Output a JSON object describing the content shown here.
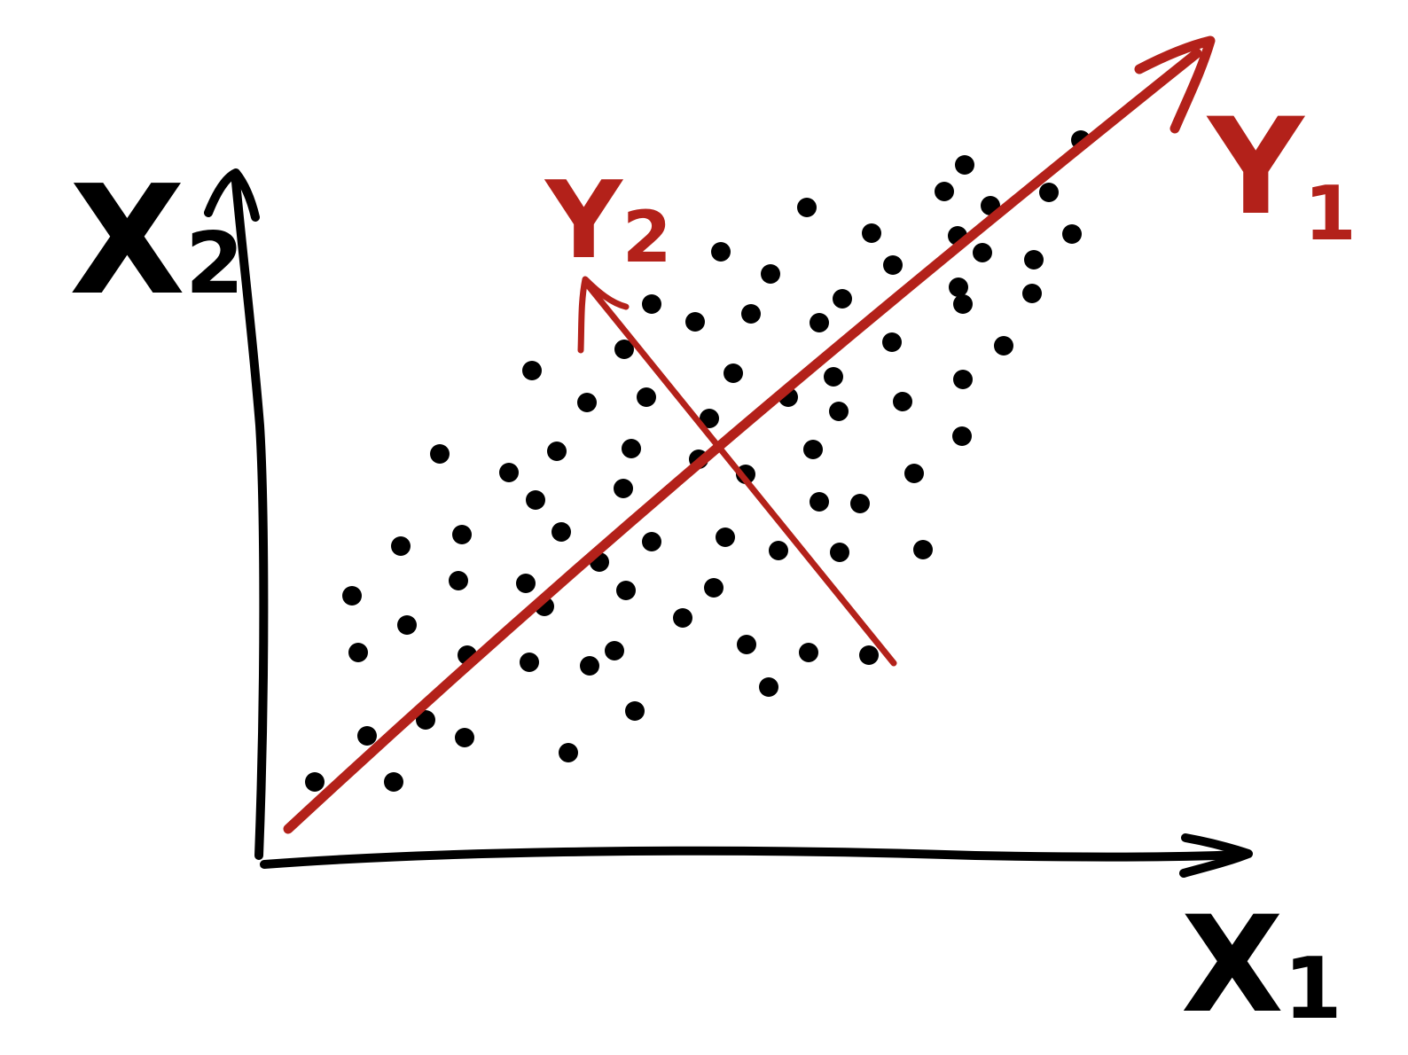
{
  "axes": {
    "x_label": {
      "main": "X",
      "sub": "1"
    },
    "y_label": {
      "main": "X",
      "sub": "2"
    }
  },
  "principal_components": [
    {
      "main": "Y",
      "sub": "1"
    },
    {
      "main": "Y",
      "sub": "2"
    }
  ],
  "colors": {
    "axes": "#000000",
    "points": "#000000",
    "components": "#b3211a"
  },
  "icons": {
    "x_axis_arrowhead": "arrow-right-icon",
    "y_axis_arrowhead": "arrow-up-icon",
    "y1_arrowhead": "arrow-up-right-icon",
    "y2_arrowhead": "arrow-up-left-icon"
  },
  "chart_data": {
    "type": "scatter",
    "points": [
      [
        355,
        882
      ],
      [
        444,
        882
      ],
      [
        414,
        830
      ],
      [
        480,
        812
      ],
      [
        524,
        832
      ],
      [
        641,
        849
      ],
      [
        716,
        802
      ],
      [
        404,
        736
      ],
      [
        459,
        705
      ],
      [
        527,
        739
      ],
      [
        597,
        747
      ],
      [
        665,
        751
      ],
      [
        693,
        734
      ],
      [
        397,
        672
      ],
      [
        517,
        655
      ],
      [
        593,
        658
      ],
      [
        614,
        684
      ],
      [
        706,
        666
      ],
      [
        770,
        697
      ],
      [
        805,
        663
      ],
      [
        842,
        727
      ],
      [
        867,
        775
      ],
      [
        912,
        736
      ],
      [
        980,
        739
      ],
      [
        452,
        616
      ],
      [
        521,
        603
      ],
      [
        633,
        600
      ],
      [
        676,
        634
      ],
      [
        735,
        611
      ],
      [
        818,
        606
      ],
      [
        878,
        621
      ],
      [
        947,
        623
      ],
      [
        1041,
        620
      ],
      [
        496,
        512
      ],
      [
        574,
        533
      ],
      [
        604,
        564
      ],
      [
        628,
        509
      ],
      [
        703,
        551
      ],
      [
        712,
        506
      ],
      [
        788,
        518
      ],
      [
        841,
        535
      ],
      [
        917,
        507
      ],
      [
        924,
        566
      ],
      [
        970,
        568
      ],
      [
        1031,
        534
      ],
      [
        600,
        418
      ],
      [
        662,
        454
      ],
      [
        729,
        448
      ],
      [
        800,
        472
      ],
      [
        827,
        421
      ],
      [
        889,
        448
      ],
      [
        940,
        425
      ],
      [
        946,
        464
      ],
      [
        1018,
        453
      ],
      [
        1085,
        492
      ],
      [
        704,
        394
      ],
      [
        735,
        343
      ],
      [
        784,
        363
      ],
      [
        847,
        354
      ],
      [
        924,
        364
      ],
      [
        950,
        337
      ],
      [
        1006,
        386
      ],
      [
        1086,
        428
      ],
      [
        1132,
        390
      ],
      [
        813,
        284
      ],
      [
        869,
        309
      ],
      [
        983,
        263
      ],
      [
        1007,
        299
      ],
      [
        1081,
        324
      ],
      [
        1086,
        343
      ],
      [
        1164,
        331
      ],
      [
        1080,
        266
      ],
      [
        1108,
        285
      ],
      [
        1166,
        293
      ],
      [
        1209,
        264
      ],
      [
        910,
        234
      ],
      [
        1065,
        216
      ],
      [
        1088,
        186
      ],
      [
        1117,
        232
      ],
      [
        1183,
        217
      ],
      [
        1219,
        158
      ]
    ]
  }
}
